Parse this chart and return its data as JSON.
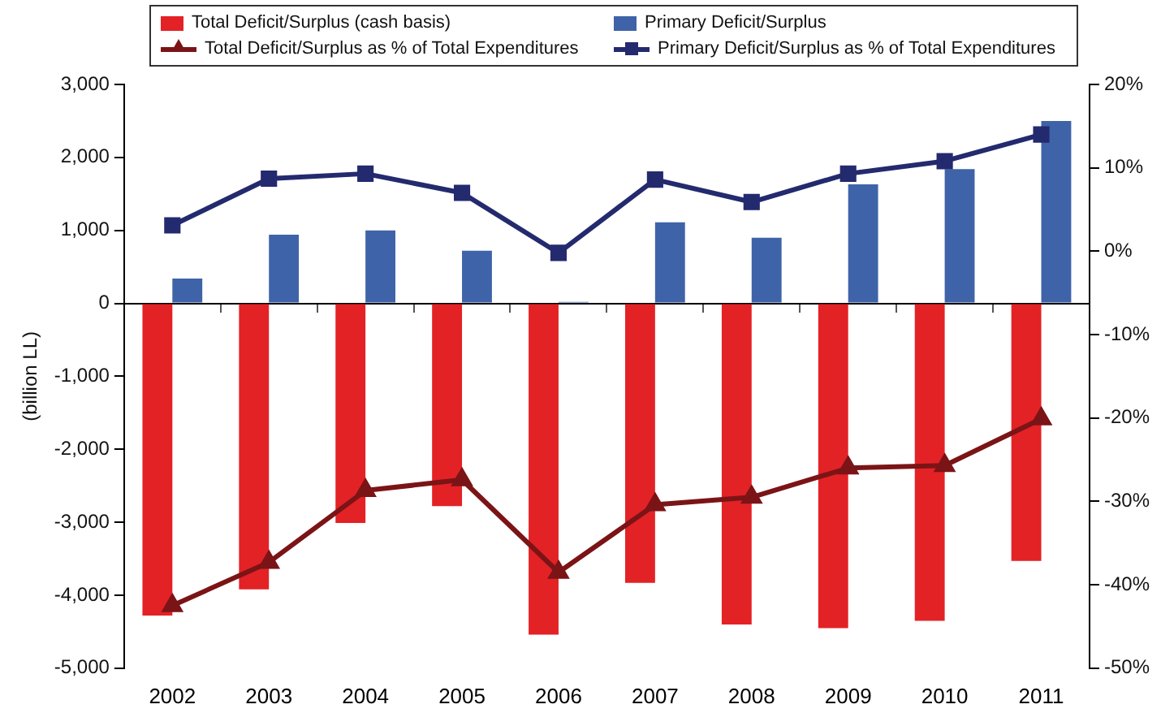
{
  "chart_data": {
    "type": "bar",
    "ylabel": "(billion LL)",
    "legend": "top",
    "categories": [
      "2002",
      "2003",
      "2004",
      "2005",
      "2006",
      "2007",
      "2008",
      "2009",
      "2010",
      "2011"
    ],
    "series": [
      {
        "name": "Total Deficit/Surplus (cash basis)",
        "color": "#e32226",
        "values": [
          -4280,
          -3920,
          -3010,
          -2780,
          -4540,
          -3830,
          -4400,
          -4450,
          -4350,
          -3530
        ]
      },
      {
        "name": "Primary Deficit/Surplus",
        "color": "#3f63a8",
        "values": [
          340,
          940,
          1000,
          720,
          20,
          1110,
          900,
          1630,
          1840,
          2500
        ]
      },
      {
        "name": "Total Deficit/Surplus as % of Total Expenditures",
        "type": "line",
        "axis": "y2",
        "marker": "triangle",
        "color": "#7b1416",
        "values": [
          -42.5,
          -37.3,
          -28.7,
          -27.4,
          -38.5,
          -30.4,
          -29.5,
          -26.0,
          -25.7,
          -20.1
        ]
      },
      {
        "name": "Primary Deficit/Surplus as % of Total Expenditures",
        "type": "line",
        "axis": "y2",
        "marker": "square",
        "color": "#232a6e",
        "values": [
          3.1,
          8.7,
          9.3,
          7.0,
          -0.2,
          8.6,
          5.9,
          9.3,
          10.8,
          14.0
        ]
      }
    ],
    "ylim": [
      -5000,
      3000
    ],
    "yticks": [
      {
        "value": -5000,
        "label": "-5,000"
      },
      {
        "value": -4000,
        "label": "-4,000"
      },
      {
        "value": -3000,
        "label": "-3,000"
      },
      {
        "value": -2000,
        "label": "-2,000"
      },
      {
        "value": -1000,
        "label": "-1,000"
      },
      0,
      {
        "value": 1000,
        "label": "1,000"
      },
      {
        "value": 2000,
        "label": "2,000"
      },
      {
        "value": 3000,
        "label": "3,000"
      }
    ],
    "y2lim": [
      -50,
      20
    ],
    "y2ticks": [
      {
        "value": -50,
        "label": "-50%"
      },
      {
        "value": -40,
        "label": "-40%"
      },
      {
        "value": -30,
        "label": "-30%"
      },
      {
        "value": -20,
        "label": "-20%"
      },
      {
        "value": -10,
        "label": "-10%"
      },
      {
        "value": 0,
        "label": "0%"
      },
      {
        "value": 10,
        "label": "10%"
      },
      {
        "value": 20,
        "label": "20%"
      }
    ]
  }
}
